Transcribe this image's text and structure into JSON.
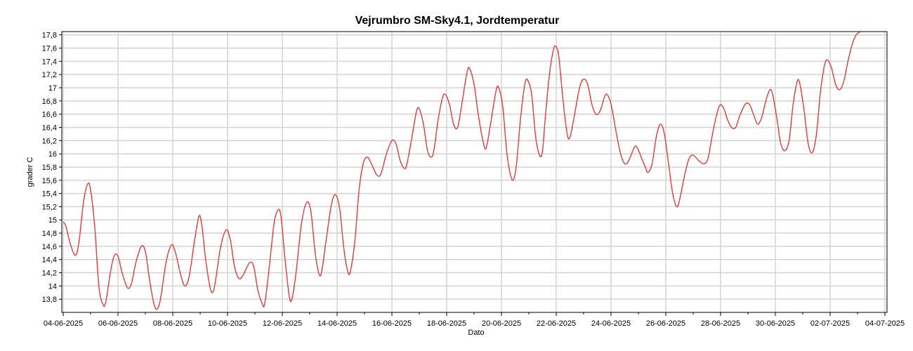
{
  "chart_data": {
    "type": "line",
    "title": "Vejrumbro SM-Sky4.1, Jordtemperatur",
    "xlabel": "Dato",
    "ylabel": "grader C",
    "x_ticks": [
      "04-06-2025",
      "06-06-2025",
      "08-06-2025",
      "10-06-2025",
      "12-06-2025",
      "14-06-2025",
      "16-06-2025",
      "18-06-2025",
      "20-06-2025",
      "22-06-2025",
      "24-06-2025",
      "26-06-2025",
      "28-06-2025",
      "30-06-2025",
      "02-07-2025",
      "04-07-2025"
    ],
    "y_ticks": [
      "13,8",
      "14",
      "14,2",
      "14,4",
      "14,6",
      "14,8",
      "15",
      "15,2",
      "15,4",
      "15,6",
      "15,8",
      "16",
      "16,2",
      "16,4",
      "16,6",
      "16,8",
      "17",
      "17,2",
      "17,4",
      "17,6",
      "17,8"
    ],
    "xlim": [
      "04-06-2025",
      "04-07-2025"
    ],
    "ylim": [
      13.6,
      17.85
    ],
    "grid": true,
    "line_color": "#e03c3c",
    "series": [
      {
        "x": [
          "04-06-2025",
          "05-06-2025",
          "06-06-2025",
          "07-06-2025",
          "08-06-2025",
          "09-06-2025",
          "10-06-2025",
          "11-06-2025",
          "12-06-2025",
          "13-06-2025",
          "14-06-2025",
          "15-06-2025",
          "16-06-2025",
          "17-06-2025",
          "18-06-2025",
          "19-06-2025",
          "20-06-2025",
          "21-06-2025",
          "22-06-2025",
          "23-06-2025",
          "24-06-2025",
          "25-06-2025",
          "26-06-2025",
          "27-06-2025",
          "28-06-2025",
          "29-06-2025",
          "30-06-2025",
          "01-07-2025",
          "02-07-2025",
          "03-07-2025"
        ],
        "points": [
          [
            0.0,
            14.97
          ],
          [
            0.1,
            14.9
          ],
          [
            0.25,
            14.65
          ],
          [
            0.4,
            14.48
          ],
          [
            0.5,
            14.5
          ],
          [
            0.6,
            14.75
          ],
          [
            0.75,
            15.3
          ],
          [
            0.9,
            15.55
          ],
          [
            1.0,
            15.45
          ],
          [
            1.15,
            14.9
          ],
          [
            1.3,
            14.0
          ],
          [
            1.45,
            13.72
          ],
          [
            1.55,
            13.75
          ],
          [
            1.7,
            14.15
          ],
          [
            1.85,
            14.45
          ],
          [
            2.0,
            14.45
          ],
          [
            2.15,
            14.2
          ],
          [
            2.35,
            13.97
          ],
          [
            2.5,
            14.05
          ],
          [
            2.65,
            14.35
          ],
          [
            2.85,
            14.6
          ],
          [
            3.0,
            14.52
          ],
          [
            3.15,
            14.1
          ],
          [
            3.3,
            13.75
          ],
          [
            3.42,
            13.65
          ],
          [
            3.55,
            13.8
          ],
          [
            3.75,
            14.35
          ],
          [
            3.95,
            14.62
          ],
          [
            4.1,
            14.5
          ],
          [
            4.3,
            14.15
          ],
          [
            4.45,
            14.0
          ],
          [
            4.6,
            14.15
          ],
          [
            4.8,
            14.7
          ],
          [
            4.95,
            15.05
          ],
          [
            5.05,
            14.95
          ],
          [
            5.2,
            14.4
          ],
          [
            5.35,
            14.0
          ],
          [
            5.45,
            13.9
          ],
          [
            5.55,
            14.05
          ],
          [
            5.75,
            14.6
          ],
          [
            5.95,
            14.85
          ],
          [
            6.1,
            14.7
          ],
          [
            6.25,
            14.3
          ],
          [
            6.4,
            14.12
          ],
          [
            6.55,
            14.15
          ],
          [
            6.8,
            14.35
          ],
          [
            6.95,
            14.3
          ],
          [
            7.1,
            13.95
          ],
          [
            7.25,
            13.75
          ],
          [
            7.35,
            13.72
          ],
          [
            7.5,
            14.2
          ],
          [
            7.7,
            14.95
          ],
          [
            7.85,
            15.15
          ],
          [
            7.95,
            15.05
          ],
          [
            8.1,
            14.4
          ],
          [
            8.25,
            13.85
          ],
          [
            8.35,
            13.8
          ],
          [
            8.5,
            14.2
          ],
          [
            8.7,
            14.95
          ],
          [
            8.9,
            15.27
          ],
          [
            9.05,
            15.1
          ],
          [
            9.2,
            14.5
          ],
          [
            9.35,
            14.17
          ],
          [
            9.45,
            14.25
          ],
          [
            9.6,
            14.7
          ],
          [
            9.8,
            15.25
          ],
          [
            9.95,
            15.38
          ],
          [
            10.1,
            15.15
          ],
          [
            10.25,
            14.55
          ],
          [
            10.4,
            14.2
          ],
          [
            10.5,
            14.25
          ],
          [
            10.65,
            14.7
          ],
          [
            10.8,
            15.45
          ],
          [
            10.95,
            15.85
          ],
          [
            11.1,
            15.95
          ],
          [
            11.25,
            15.85
          ],
          [
            11.45,
            15.68
          ],
          [
            11.6,
            15.7
          ],
          [
            11.8,
            16.0
          ],
          [
            12.0,
            16.2
          ],
          [
            12.15,
            16.15
          ],
          [
            12.3,
            15.9
          ],
          [
            12.45,
            15.78
          ],
          [
            12.55,
            15.85
          ],
          [
            12.75,
            16.3
          ],
          [
            12.9,
            16.65
          ],
          [
            13.0,
            16.68
          ],
          [
            13.15,
            16.45
          ],
          [
            13.3,
            16.05
          ],
          [
            13.45,
            15.95
          ],
          [
            13.55,
            16.1
          ],
          [
            13.7,
            16.55
          ],
          [
            13.85,
            16.85
          ],
          [
            13.95,
            16.9
          ],
          [
            14.1,
            16.75
          ],
          [
            14.25,
            16.45
          ],
          [
            14.4,
            16.4
          ],
          [
            14.55,
            16.75
          ],
          [
            14.75,
            17.25
          ],
          [
            14.85,
            17.28
          ],
          [
            15.0,
            17.05
          ],
          [
            15.15,
            16.6
          ],
          [
            15.35,
            16.15
          ],
          [
            15.45,
            16.1
          ],
          [
            15.6,
            16.45
          ],
          [
            15.8,
            16.95
          ],
          [
            15.9,
            17.0
          ],
          [
            16.05,
            16.7
          ],
          [
            16.2,
            16.0
          ],
          [
            16.35,
            15.65
          ],
          [
            16.45,
            15.62
          ],
          [
            16.55,
            15.85
          ],
          [
            16.7,
            16.55
          ],
          [
            16.85,
            17.05
          ],
          [
            16.95,
            17.12
          ],
          [
            17.1,
            16.9
          ],
          [
            17.25,
            16.25
          ],
          [
            17.4,
            15.97
          ],
          [
            17.5,
            16.05
          ],
          [
            17.6,
            16.55
          ],
          [
            17.75,
            17.2
          ],
          [
            17.9,
            17.58
          ],
          [
            18.0,
            17.62
          ],
          [
            18.1,
            17.45
          ],
          [
            18.25,
            16.8
          ],
          [
            18.4,
            16.3
          ],
          [
            18.5,
            16.25
          ],
          [
            18.65,
            16.55
          ],
          [
            18.85,
            17.0
          ],
          [
            19.0,
            17.13
          ],
          [
            19.15,
            17.05
          ],
          [
            19.3,
            16.75
          ],
          [
            19.45,
            16.6
          ],
          [
            19.6,
            16.65
          ],
          [
            19.75,
            16.85
          ],
          [
            19.85,
            16.9
          ],
          [
            20.0,
            16.75
          ],
          [
            20.2,
            16.3
          ],
          [
            20.35,
            16.0
          ],
          [
            20.5,
            15.85
          ],
          [
            20.65,
            15.9
          ],
          [
            20.85,
            16.1
          ],
          [
            20.95,
            16.1
          ],
          [
            21.1,
            15.95
          ],
          [
            21.25,
            15.8
          ],
          [
            21.35,
            15.72
          ],
          [
            21.5,
            15.85
          ],
          [
            21.65,
            16.25
          ],
          [
            21.8,
            16.45
          ],
          [
            21.95,
            16.3
          ],
          [
            22.1,
            15.85
          ],
          [
            22.25,
            15.4
          ],
          [
            22.4,
            15.2
          ],
          [
            22.5,
            15.3
          ],
          [
            22.7,
            15.7
          ],
          [
            22.85,
            15.93
          ],
          [
            23.0,
            15.98
          ],
          [
            23.2,
            15.9
          ],
          [
            23.4,
            15.85
          ],
          [
            23.55,
            15.95
          ],
          [
            23.75,
            16.4
          ],
          [
            23.95,
            16.72
          ],
          [
            24.1,
            16.7
          ],
          [
            24.25,
            16.52
          ],
          [
            24.4,
            16.4
          ],
          [
            24.55,
            16.4
          ],
          [
            24.7,
            16.58
          ],
          [
            24.9,
            16.75
          ],
          [
            25.05,
            16.75
          ],
          [
            25.2,
            16.6
          ],
          [
            25.35,
            16.45
          ],
          [
            25.5,
            16.55
          ],
          [
            25.65,
            16.8
          ],
          [
            25.8,
            16.97
          ],
          [
            25.9,
            16.9
          ],
          [
            26.05,
            16.55
          ],
          [
            26.2,
            16.15
          ],
          [
            26.35,
            16.05
          ],
          [
            26.5,
            16.2
          ],
          [
            26.65,
            16.75
          ],
          [
            26.8,
            17.1
          ],
          [
            26.9,
            17.05
          ],
          [
            27.05,
            16.65
          ],
          [
            27.2,
            16.15
          ],
          [
            27.35,
            16.02
          ],
          [
            27.5,
            16.3
          ],
          [
            27.65,
            16.95
          ],
          [
            27.8,
            17.35
          ],
          [
            27.9,
            17.42
          ],
          [
            28.05,
            17.3
          ],
          [
            28.2,
            17.05
          ],
          [
            28.35,
            16.97
          ],
          [
            28.5,
            17.1
          ],
          [
            28.65,
            17.4
          ],
          [
            28.8,
            17.65
          ],
          [
            28.95,
            17.8
          ],
          [
            29.1,
            17.85
          ]
        ]
      }
    ]
  }
}
